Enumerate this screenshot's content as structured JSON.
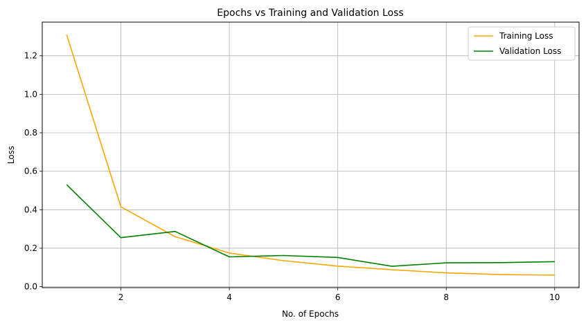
{
  "chart_data": {
    "type": "line",
    "title": "Epochs vs Training and Validation Loss",
    "xlabel": "No. of Epochs",
    "ylabel": "Loss",
    "x": [
      1,
      2,
      3,
      4,
      5,
      6,
      7,
      8,
      9,
      10
    ],
    "xlim": [
      0.55,
      10.45
    ],
    "ylim": [
      -0.005,
      1.375
    ],
    "xticks": [
      2,
      4,
      6,
      8,
      10
    ],
    "yticks": [
      0.0,
      0.2,
      0.4,
      0.6,
      0.8,
      1.0,
      1.2
    ],
    "ytick_labels": [
      "0.0",
      "0.2",
      "0.4",
      "0.6",
      "0.8",
      "1.0",
      "1.2"
    ],
    "grid": true,
    "legend_position": "top-right",
    "series": [
      {
        "name": "Training Loss",
        "color": "#ffa500",
        "values": [
          1.31,
          0.415,
          0.26,
          0.175,
          0.135,
          0.107,
          0.088,
          0.072,
          0.063,
          0.06
        ]
      },
      {
        "name": "Validation Loss",
        "color": "#008000",
        "values": [
          0.53,
          0.255,
          0.287,
          0.155,
          0.162,
          0.152,
          0.106,
          0.124,
          0.125,
          0.13
        ]
      }
    ]
  }
}
